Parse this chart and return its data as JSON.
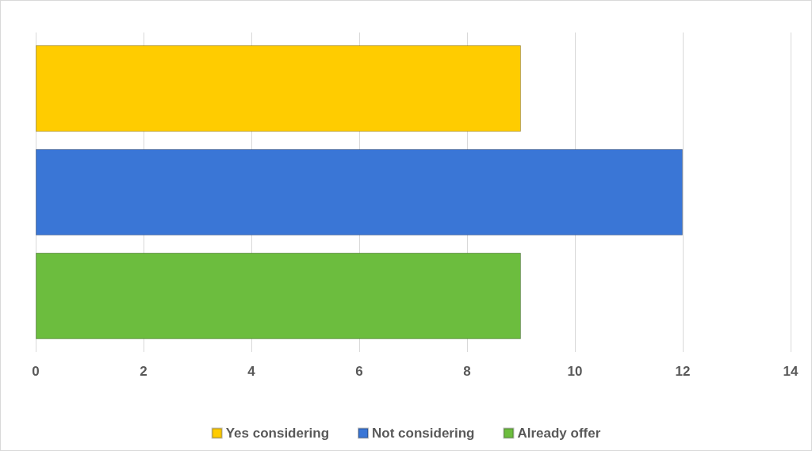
{
  "chart_data": {
    "type": "bar",
    "orientation": "horizontal",
    "categories": [
      null
    ],
    "series": [
      {
        "name": "Yes considering",
        "color": "#ffcc00",
        "values": [
          9
        ]
      },
      {
        "name": "Not considering",
        "color": "#3a76d6",
        "values": [
          12
        ]
      },
      {
        "name": "Already offer",
        "color": "#6cbd3e",
        "values": [
          9
        ]
      }
    ],
    "xlim": [
      0,
      14
    ],
    "xticks": [
      0,
      2,
      4,
      6,
      8,
      10,
      12,
      14
    ],
    "grid": "x",
    "legend": "bottom"
  }
}
